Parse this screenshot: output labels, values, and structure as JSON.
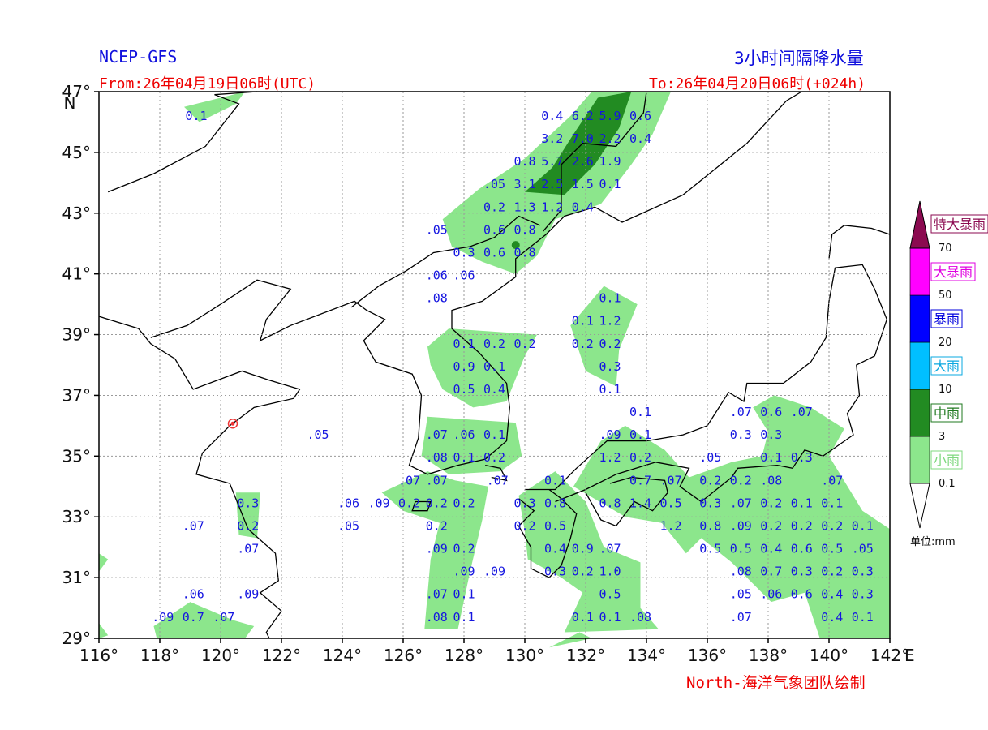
{
  "header": {
    "model": "NCEP-GFS",
    "product": "3小时间隔降水量",
    "from": "From:26年04月19日06时(UTC)",
    "to": "To:26年04月20日06时(+024h)"
  },
  "footer": {
    "credit": "North-海洋气象团队绘制"
  },
  "axes": {
    "lon_ticks": [
      "116°",
      "118°",
      "120°",
      "122°",
      "124°",
      "126°",
      "128°",
      "130°",
      "132°",
      "134°",
      "136°",
      "138°",
      "140°",
      "142°"
    ],
    "lon_suffix": "E",
    "lat_ticks": [
      "29°",
      "31°",
      "33°",
      "35°",
      "37°",
      "39°",
      "41°",
      "43°",
      "45°",
      "47°"
    ],
    "lat_suffix": "N",
    "lon_range": [
      116,
      142
    ],
    "lat_range": [
      29,
      47
    ],
    "grid": true
  },
  "legend": {
    "unit": "单位:mm",
    "thresholds": [
      "0.1",
      "3",
      "10",
      "20",
      "50",
      "70"
    ],
    "categories": [
      {
        "label": "小雨",
        "color": "#8ce68c",
        "text_color": "#7fd87f"
      },
      {
        "label": "中雨",
        "color": "#228b22",
        "text_color": "#1f7a1f"
      },
      {
        "label": "大雨",
        "color": "#00bfff",
        "text_color": "#0aa8e0"
      },
      {
        "label": "暴雨",
        "color": "#0000ff",
        "text_color": "#0000dd"
      },
      {
        "label": "大暴雨",
        "color": "#ff00ff",
        "text_color": "#e000e0"
      },
      {
        "label": "特大暴雨",
        "color": "#8b0a50",
        "text_color": "#8b0a50"
      }
    ]
  },
  "station": {
    "lon": 120.4,
    "lat": 36.07,
    "color": "#ee3333"
  },
  "values": [
    {
      "t": "0.1",
      "lon": 119.2,
      "lat": 46.2
    },
    {
      "t": "0.4",
      "lon": 130.9,
      "lat": 46.2
    },
    {
      "t": "6.2",
      "lon": 131.9,
      "lat": 46.2
    },
    {
      "t": "5.9",
      "lon": 132.8,
      "lat": 46.2
    },
    {
      "t": "0.6",
      "lon": 133.8,
      "lat": 46.2
    },
    {
      "t": "3.2",
      "lon": 130.9,
      "lat": 45.45
    },
    {
      "t": "7.0",
      "lon": 131.9,
      "lat": 45.45
    },
    {
      "t": "2.2",
      "lon": 132.8,
      "lat": 45.45
    },
    {
      "t": "0.4",
      "lon": 133.8,
      "lat": 45.45
    },
    {
      "t": "0.8",
      "lon": 130.0,
      "lat": 44.7
    },
    {
      "t": "5.7",
      "lon": 130.9,
      "lat": 44.7
    },
    {
      "t": "2.6",
      "lon": 131.9,
      "lat": 44.7
    },
    {
      "t": "1.9",
      "lon": 132.8,
      "lat": 44.7
    },
    {
      "t": ".05",
      "lon": 129.0,
      "lat": 43.95
    },
    {
      "t": "3.1",
      "lon": 130.0,
      "lat": 43.95
    },
    {
      "t": "2.5",
      "lon": 130.9,
      "lat": 43.95
    },
    {
      "t": "1.5",
      "lon": 131.9,
      "lat": 43.95
    },
    {
      "t": "0.1",
      "lon": 132.8,
      "lat": 43.95
    },
    {
      "t": "0.2",
      "lon": 129.0,
      "lat": 43.2
    },
    {
      "t": "1.3",
      "lon": 130.0,
      "lat": 43.2
    },
    {
      "t": "1.2",
      "lon": 130.9,
      "lat": 43.2
    },
    {
      "t": "0.4",
      "lon": 131.9,
      "lat": 43.2
    },
    {
      "t": ".05",
      "lon": 127.1,
      "lat": 42.45
    },
    {
      "t": "0.6",
      "lon": 129.0,
      "lat": 42.45
    },
    {
      "t": "0.8",
      "lon": 130.0,
      "lat": 42.45
    },
    {
      "t": "0.3",
      "lon": 128.0,
      "lat": 41.7
    },
    {
      "t": "0.6",
      "lon": 129.0,
      "lat": 41.7
    },
    {
      "t": "0.8",
      "lon": 130.0,
      "lat": 41.7
    },
    {
      "t": ".06",
      "lon": 127.1,
      "lat": 40.95
    },
    {
      "t": ".06",
      "lon": 128.0,
      "lat": 40.95
    },
    {
      "t": ".08",
      "lon": 127.1,
      "lat": 40.2
    },
    {
      "t": "0.1",
      "lon": 132.8,
      "lat": 40.2
    },
    {
      "t": "0.1",
      "lon": 131.9,
      "lat": 39.45
    },
    {
      "t": "1.2",
      "lon": 132.8,
      "lat": 39.45
    },
    {
      "t": "0.1",
      "lon": 128.0,
      "lat": 38.7
    },
    {
      "t": "0.2",
      "lon": 129.0,
      "lat": 38.7
    },
    {
      "t": "0.2",
      "lon": 130.0,
      "lat": 38.7
    },
    {
      "t": "0.2",
      "lon": 131.9,
      "lat": 38.7
    },
    {
      "t": "0.2",
      "lon": 132.8,
      "lat": 38.7
    },
    {
      "t": "0.9",
      "lon": 128.0,
      "lat": 37.95
    },
    {
      "t": "0.1",
      "lon": 129.0,
      "lat": 37.95
    },
    {
      "t": "0.3",
      "lon": 132.8,
      "lat": 37.95
    },
    {
      "t": "0.5",
      "lon": 128.0,
      "lat": 37.2
    },
    {
      "t": "0.4",
      "lon": 129.0,
      "lat": 37.2
    },
    {
      "t": "0.1",
      "lon": 132.8,
      "lat": 37.2
    },
    {
      "t": "0.1",
      "lon": 133.8,
      "lat": 36.45
    },
    {
      "t": ".07",
      "lon": 137.1,
      "lat": 36.45
    },
    {
      "t": "0.6",
      "lon": 138.1,
      "lat": 36.45
    },
    {
      "t": ".07",
      "lon": 139.1,
      "lat": 36.45
    },
    {
      "t": ".05",
      "lon": 123.2,
      "lat": 35.7
    },
    {
      "t": ".07",
      "lon": 127.1,
      "lat": 35.7
    },
    {
      "t": ".06",
      "lon": 128.0,
      "lat": 35.7
    },
    {
      "t": "0.1",
      "lon": 129.0,
      "lat": 35.7
    },
    {
      "t": ".09",
      "lon": 132.8,
      "lat": 35.7
    },
    {
      "t": "0.1",
      "lon": 133.8,
      "lat": 35.7
    },
    {
      "t": "0.3",
      "lon": 137.1,
      "lat": 35.7
    },
    {
      "t": "0.3",
      "lon": 138.1,
      "lat": 35.7
    },
    {
      "t": ".08",
      "lon": 127.1,
      "lat": 34.95
    },
    {
      "t": "0.1",
      "lon": 128.0,
      "lat": 34.95
    },
    {
      "t": "0.2",
      "lon": 129.0,
      "lat": 34.95
    },
    {
      "t": "1.2",
      "lon": 132.8,
      "lat": 34.95
    },
    {
      "t": "0.2",
      "lon": 133.8,
      "lat": 34.95
    },
    {
      "t": ".05",
      "lon": 136.1,
      "lat": 34.95
    },
    {
      "t": "0.1",
      "lon": 138.1,
      "lat": 34.95
    },
    {
      "t": "0.3",
      "lon": 139.1,
      "lat": 34.95
    },
    {
      "t": ".07",
      "lon": 126.2,
      "lat": 34.2
    },
    {
      "t": ".07",
      "lon": 127.1,
      "lat": 34.2
    },
    {
      "t": ".07",
      "lon": 129.1,
      "lat": 34.2
    },
    {
      "t": "0.1",
      "lon": 131.0,
      "lat": 34.2
    },
    {
      "t": "0.7",
      "lon": 133.8,
      "lat": 34.2
    },
    {
      "t": ".07",
      "lon": 134.8,
      "lat": 34.2
    },
    {
      "t": "0.2",
      "lon": 136.1,
      "lat": 34.2
    },
    {
      "t": "0.2",
      "lon": 137.1,
      "lat": 34.2
    },
    {
      "t": ".08",
      "lon": 138.1,
      "lat": 34.2
    },
    {
      "t": ".07",
      "lon": 140.1,
      "lat": 34.2
    },
    {
      "t": "0.3",
      "lon": 120.9,
      "lat": 33.45
    },
    {
      "t": ".06",
      "lon": 124.2,
      "lat": 33.45
    },
    {
      "t": ".09",
      "lon": 125.2,
      "lat": 33.45
    },
    {
      "t": "0.2",
      "lon": 126.2,
      "lat": 33.45
    },
    {
      "t": "0.2",
      "lon": 127.1,
      "lat": 33.45
    },
    {
      "t": "0.2",
      "lon": 128.0,
      "lat": 33.45
    },
    {
      "t": "0.3",
      "lon": 130.0,
      "lat": 33.45
    },
    {
      "t": "0.8",
      "lon": 131.0,
      "lat": 33.45
    },
    {
      "t": "0.8",
      "lon": 132.8,
      "lat": 33.45
    },
    {
      "t": "1.4",
      "lon": 133.8,
      "lat": 33.45
    },
    {
      "t": "0.5",
      "lon": 134.8,
      "lat": 33.45
    },
    {
      "t": "0.3",
      "lon": 136.1,
      "lat": 33.45
    },
    {
      "t": ".07",
      "lon": 137.1,
      "lat": 33.45
    },
    {
      "t": "0.2",
      "lon": 138.1,
      "lat": 33.45
    },
    {
      "t": "0.1",
      "lon": 139.1,
      "lat": 33.45
    },
    {
      "t": "0.1",
      "lon": 140.1,
      "lat": 33.45
    },
    {
      "t": ".07",
      "lon": 119.1,
      "lat": 32.7
    },
    {
      "t": "0.2",
      "lon": 120.9,
      "lat": 32.7
    },
    {
      "t": ".05",
      "lon": 124.2,
      "lat": 32.7
    },
    {
      "t": "0.2",
      "lon": 127.1,
      "lat": 32.7
    },
    {
      "t": "0.2",
      "lon": 130.0,
      "lat": 32.7
    },
    {
      "t": "0.5",
      "lon": 131.0,
      "lat": 32.7
    },
    {
      "t": "1.2",
      "lon": 134.8,
      "lat": 32.7
    },
    {
      "t": "0.8",
      "lon": 136.1,
      "lat": 32.7
    },
    {
      "t": ".09",
      "lon": 137.1,
      "lat": 32.7
    },
    {
      "t": "0.2",
      "lon": 138.1,
      "lat": 32.7
    },
    {
      "t": "0.2",
      "lon": 139.1,
      "lat": 32.7
    },
    {
      "t": "0.2",
      "lon": 140.1,
      "lat": 32.7
    },
    {
      "t": "0.1",
      "lon": 141.1,
      "lat": 32.7
    },
    {
      "t": ".07",
      "lon": 120.9,
      "lat": 31.95
    },
    {
      "t": ".09",
      "lon": 127.1,
      "lat": 31.95
    },
    {
      "t": "0.2",
      "lon": 128.0,
      "lat": 31.95
    },
    {
      "t": "0.4",
      "lon": 131.0,
      "lat": 31.95
    },
    {
      "t": "0.9",
      "lon": 131.9,
      "lat": 31.95
    },
    {
      "t": ".07",
      "lon": 132.8,
      "lat": 31.95
    },
    {
      "t": "0.5",
      "lon": 136.1,
      "lat": 31.95
    },
    {
      "t": "0.5",
      "lon": 137.1,
      "lat": 31.95
    },
    {
      "t": "0.4",
      "lon": 138.1,
      "lat": 31.95
    },
    {
      "t": "0.6",
      "lon": 139.1,
      "lat": 31.95
    },
    {
      "t": "0.5",
      "lon": 140.1,
      "lat": 31.95
    },
    {
      "t": ".05",
      "lon": 141.1,
      "lat": 31.95
    },
    {
      "t": ".09",
      "lon": 128.0,
      "lat": 31.2
    },
    {
      "t": ".09",
      "lon": 129.0,
      "lat": 31.2
    },
    {
      "t": "0.3",
      "lon": 131.0,
      "lat": 31.2
    },
    {
      "t": "0.2",
      "lon": 131.9,
      "lat": 31.2
    },
    {
      "t": "1.0",
      "lon": 132.8,
      "lat": 31.2
    },
    {
      "t": ".08",
      "lon": 137.1,
      "lat": 31.2
    },
    {
      "t": "0.7",
      "lon": 138.1,
      "lat": 31.2
    },
    {
      "t": "0.3",
      "lon": 139.1,
      "lat": 31.2
    },
    {
      "t": "0.2",
      "lon": 140.1,
      "lat": 31.2
    },
    {
      "t": "0.3",
      "lon": 141.1,
      "lat": 31.2
    },
    {
      "t": ".06",
      "lon": 119.1,
      "lat": 30.45
    },
    {
      "t": ".09",
      "lon": 120.9,
      "lat": 30.45
    },
    {
      "t": ".07",
      "lon": 127.1,
      "lat": 30.45
    },
    {
      "t": "0.1",
      "lon": 128.0,
      "lat": 30.45
    },
    {
      "t": "0.5",
      "lon": 132.8,
      "lat": 30.45
    },
    {
      "t": ".05",
      "lon": 137.1,
      "lat": 30.45
    },
    {
      "t": ".06",
      "lon": 138.1,
      "lat": 30.45
    },
    {
      "t": "0.6",
      "lon": 139.1,
      "lat": 30.45
    },
    {
      "t": "0.4",
      "lon": 140.1,
      "lat": 30.45
    },
    {
      "t": "0.3",
      "lon": 141.1,
      "lat": 30.45
    },
    {
      "t": ".09",
      "lon": 118.1,
      "lat": 29.7
    },
    {
      "t": "0.7",
      "lon": 119.1,
      "lat": 29.7
    },
    {
      "t": ".07",
      "lon": 120.1,
      "lat": 29.7
    },
    {
      "t": ".08",
      "lon": 127.1,
      "lat": 29.7
    },
    {
      "t": "0.1",
      "lon": 128.0,
      "lat": 29.7
    },
    {
      "t": "0.1",
      "lon": 131.9,
      "lat": 29.7
    },
    {
      "t": "0.1",
      "lon": 132.8,
      "lat": 29.7
    },
    {
      "t": ".08",
      "lon": 133.8,
      "lat": 29.7
    },
    {
      "t": ".07",
      "lon": 137.1,
      "lat": 29.7
    },
    {
      "t": "0.4",
      "lon": 140.1,
      "lat": 29.7
    },
    {
      "t": "0.1",
      "lon": 141.1,
      "lat": 29.7
    }
  ]
}
